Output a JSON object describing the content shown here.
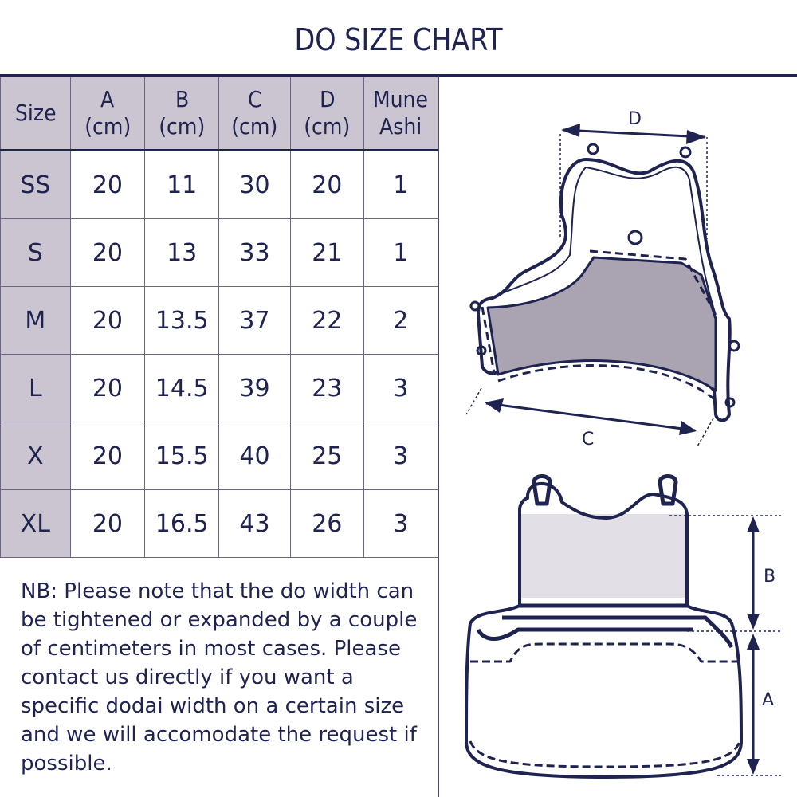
{
  "title": "DO SIZE CHART",
  "table": {
    "headers": [
      [
        "Size",
        ""
      ],
      [
        "A",
        "(cm)"
      ],
      [
        "B",
        "(cm)"
      ],
      [
        "C",
        "(cm)"
      ],
      [
        "D",
        "(cm)"
      ],
      [
        "Mune",
        "Ashi"
      ]
    ],
    "rows": [
      [
        "SS",
        "20",
        "11",
        "30",
        "20",
        "1"
      ],
      [
        "S",
        "20",
        "13",
        "33",
        "21",
        "1"
      ],
      [
        "M",
        "20",
        "13.5",
        "37",
        "22",
        "2"
      ],
      [
        "L",
        "20",
        "14.5",
        "39",
        "23",
        "3"
      ],
      [
        "X",
        "20",
        "15.5",
        "40",
        "25",
        "3"
      ],
      [
        "XL",
        "20",
        "16.5",
        "43",
        "26",
        "3"
      ]
    ]
  },
  "note": "NB: Please note that the do width can be tightened or expanded by a couple of centimeters in most cases. Please contact us directly if you want a specific dodai width on a certain size and we will accomodate the request if possible.",
  "diagram": {
    "labels": {
      "a": "A",
      "b": "B",
      "c": "C",
      "d": "D"
    }
  },
  "colors": {
    "navy": "#1f2350",
    "shade": "#cbc5d1",
    "fill": "#aaa4b2"
  }
}
